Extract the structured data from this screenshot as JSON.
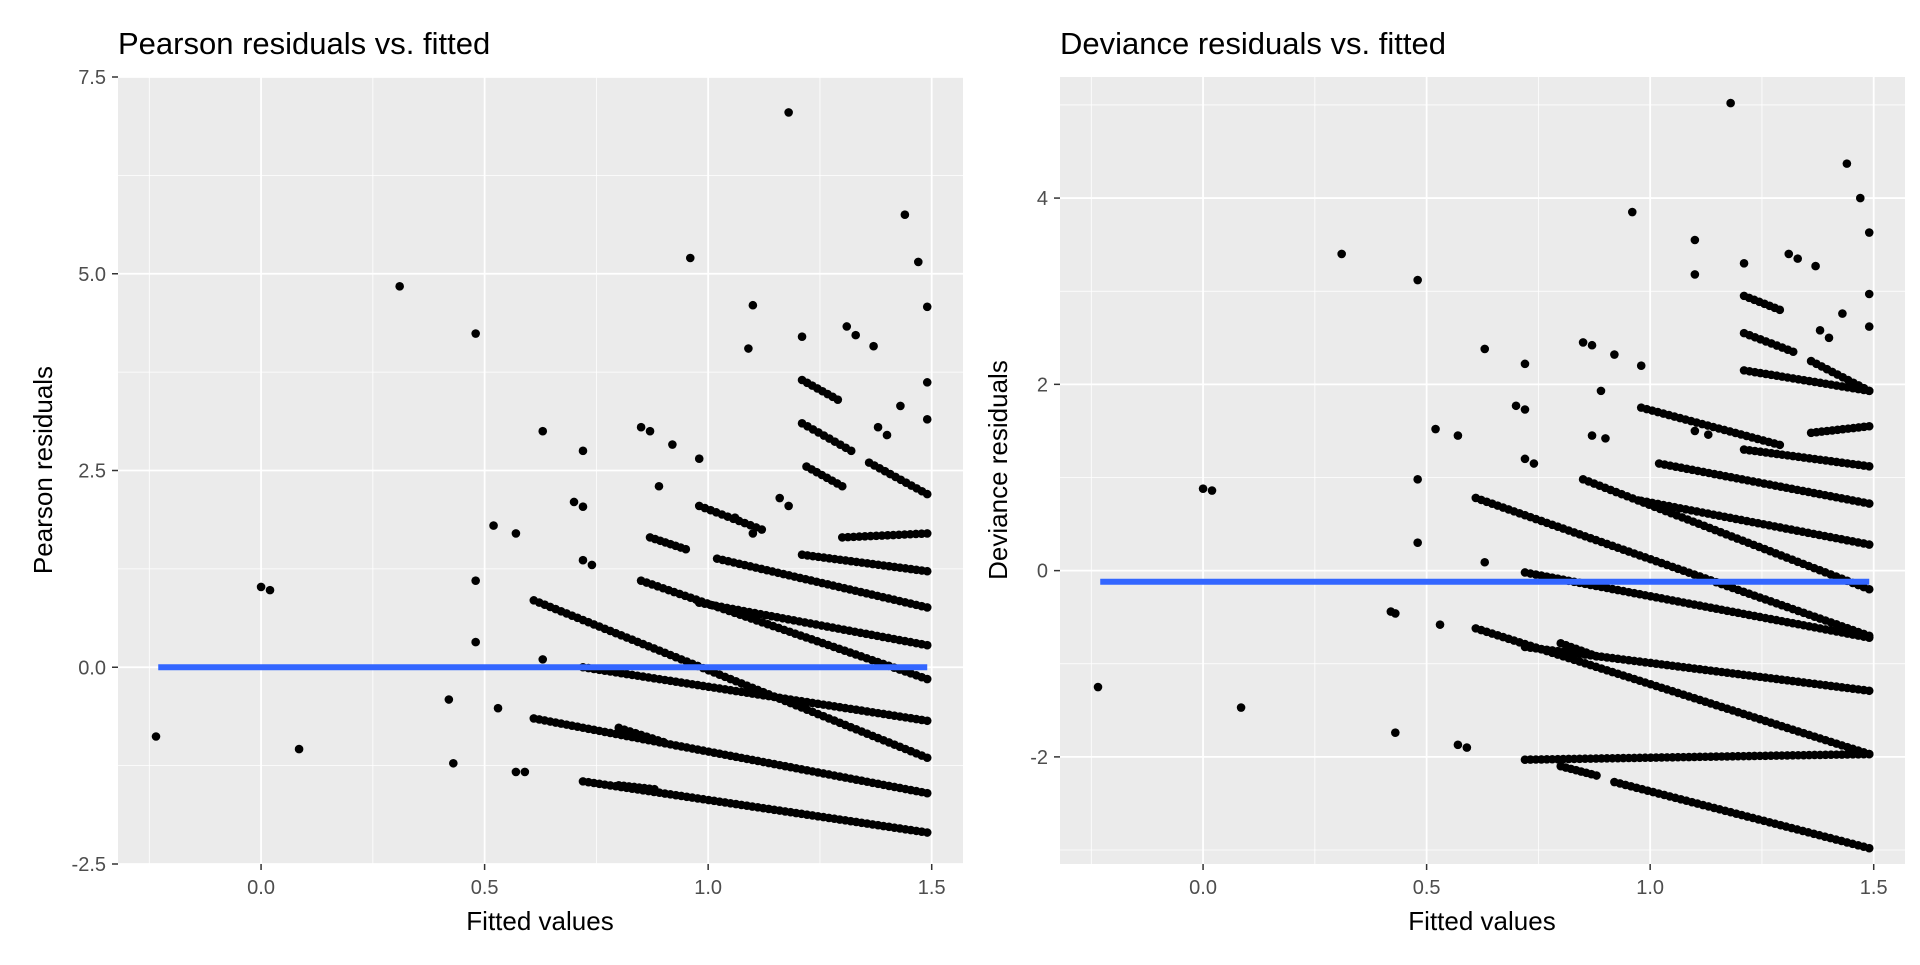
{
  "chart_data": [
    {
      "type": "scatter",
      "title": "Pearson residuals vs. fitted",
      "xlabel": "Fitted values",
      "ylabel": "Pearson residuals",
      "xlim": [
        -0.32,
        1.57
      ],
      "ylim": [
        -2.5,
        7.5
      ],
      "x_ticks": [
        0.0,
        0.5,
        1.0,
        1.5
      ],
      "x_tick_labels": [
        "0.0",
        "0.5",
        "1.0",
        "1.5"
      ],
      "y_ticks": [
        -2.5,
        0.0,
        2.5,
        5.0,
        7.5
      ],
      "y_tick_labels": [
        "-2.5",
        "0.0",
        "2.5",
        "5.0",
        "7.5"
      ],
      "grid": true,
      "smooth_line": {
        "x": [
          -0.23,
          1.49
        ],
        "y": [
          0.0,
          0.0
        ],
        "color": "#3366ff"
      },
      "points": [
        [
          -0.235,
          -0.88
        ],
        [
          0.0,
          1.02
        ],
        [
          0.02,
          0.98
        ],
        [
          0.085,
          -1.04
        ],
        [
          0.31,
          4.84
        ],
        [
          0.42,
          -0.41
        ],
        [
          0.43,
          -1.22
        ],
        [
          0.48,
          4.24
        ],
        [
          0.48,
          1.1
        ],
        [
          0.48,
          0.32
        ],
        [
          0.52,
          1.8
        ],
        [
          0.53,
          -0.52
        ],
        [
          0.57,
          1.7
        ],
        [
          0.57,
          -1.33
        ],
        [
          0.59,
          -1.33
        ],
        [
          0.63,
          3.0
        ],
        [
          0.63,
          0.1
        ],
        [
          0.72,
          2.75
        ],
        [
          0.7,
          2.1
        ],
        [
          0.72,
          2.04
        ],
        [
          0.72,
          1.36
        ],
        [
          0.74,
          1.3
        ],
        [
          0.96,
          5.2
        ],
        [
          1.1,
          4.6
        ],
        [
          1.09,
          4.05
        ],
        [
          1.18,
          7.05
        ],
        [
          1.21,
          4.2
        ],
        [
          1.44,
          5.75
        ],
        [
          1.47,
          5.15
        ],
        [
          1.49,
          4.58
        ],
        [
          1.49,
          3.62
        ],
        [
          1.49,
          3.15
        ],
        [
          1.31,
          4.33
        ],
        [
          1.33,
          4.22
        ],
        [
          1.37,
          4.08
        ],
        [
          0.85,
          3.05
        ],
        [
          0.87,
          3.0
        ],
        [
          0.92,
          2.83
        ],
        [
          0.98,
          2.65
        ],
        [
          0.89,
          2.3
        ],
        [
          1.43,
          3.32
        ],
        [
          1.4,
          2.95
        ],
        [
          1.38,
          3.05
        ],
        [
          1.16,
          2.15
        ],
        [
          1.18,
          2.05
        ],
        [
          1.06,
          1.9
        ],
        [
          1.1,
          1.7
        ]
      ],
      "bands": [
        {
          "x_start": 0.72,
          "x_end": 1.49,
          "y_start": -1.45,
          "y_end": -2.1
        },
        {
          "x_start": 0.61,
          "x_end": 1.49,
          "y_start": -0.65,
          "y_end": -1.6
        },
        {
          "x_start": 0.61,
          "x_end": 1.49,
          "y_start": 0.85,
          "y_end": -1.15
        },
        {
          "x_start": 0.72,
          "x_end": 1.49,
          "y_start": 0.0,
          "y_end": -0.68
        },
        {
          "x_start": 0.85,
          "x_end": 1.49,
          "y_start": 1.1,
          "y_end": -0.15
        },
        {
          "x_start": 0.98,
          "x_end": 1.49,
          "y_start": 0.82,
          "y_end": 0.28
        },
        {
          "x_start": 1.02,
          "x_end": 1.49,
          "y_start": 1.38,
          "y_end": 0.76
        },
        {
          "x_start": 1.21,
          "x_end": 1.49,
          "y_start": 1.43,
          "y_end": 1.22
        },
        {
          "x_start": 1.3,
          "x_end": 1.49,
          "y_start": 1.65,
          "y_end": 1.7
        },
        {
          "x_start": 1.36,
          "x_end": 1.49,
          "y_start": 2.6,
          "y_end": 2.2
        },
        {
          "x_start": 1.21,
          "x_end": 1.29,
          "y_start": 3.65,
          "y_end": 3.4
        },
        {
          "x_start": 1.21,
          "x_end": 1.32,
          "y_start": 3.1,
          "y_end": 2.75
        },
        {
          "x_start": 1.22,
          "x_end": 1.3,
          "y_start": 2.55,
          "y_end": 2.3
        },
        {
          "x_start": 0.98,
          "x_end": 1.12,
          "y_start": 2.05,
          "y_end": 1.75
        },
        {
          "x_start": 0.87,
          "x_end": 0.95,
          "y_start": 1.65,
          "y_end": 1.5
        },
        {
          "x_start": 0.8,
          "x_end": 0.9,
          "y_start": -0.77,
          "y_end": -0.95
        },
        {
          "x_start": 0.8,
          "x_end": 0.88,
          "y_start": -1.5,
          "y_end": -1.55
        }
      ]
    },
    {
      "type": "scatter",
      "title": "Deviance residuals vs. fitted",
      "xlabel": "Fitted values",
      "ylabel": "Deviance residuals",
      "xlim": [
        -0.32,
        1.57
      ],
      "ylim": [
        -3.15,
        5.3
      ],
      "x_ticks": [
        0.0,
        0.5,
        1.0,
        1.5
      ],
      "x_tick_labels": [
        "0.0",
        "0.5",
        "1.0",
        "1.5"
      ],
      "y_ticks": [
        -2,
        0,
        2,
        4
      ],
      "y_tick_labels": [
        "-2",
        "0",
        "2",
        "4"
      ],
      "grid": true,
      "smooth_line": {
        "x": [
          -0.23,
          1.49
        ],
        "y": [
          -0.12,
          -0.12
        ],
        "color": "#3366ff"
      },
      "points": [
        [
          -0.235,
          -1.25
        ],
        [
          0.0,
          0.88
        ],
        [
          0.02,
          0.86
        ],
        [
          0.085,
          -1.47
        ],
        [
          0.31,
          3.4
        ],
        [
          0.42,
          -0.44
        ],
        [
          0.43,
          -0.46
        ],
        [
          0.43,
          -1.74
        ],
        [
          0.48,
          3.12
        ],
        [
          0.48,
          0.98
        ],
        [
          0.48,
          0.3
        ],
        [
          0.52,
          1.52
        ],
        [
          0.53,
          -0.58
        ],
        [
          0.57,
          1.45
        ],
        [
          0.57,
          -1.87
        ],
        [
          0.59,
          -1.9
        ],
        [
          0.63,
          2.38
        ],
        [
          0.63,
          0.09
        ],
        [
          0.72,
          2.22
        ],
        [
          0.7,
          1.77
        ],
        [
          0.72,
          1.73
        ],
        [
          0.72,
          1.2
        ],
        [
          0.74,
          1.15
        ],
        [
          0.96,
          3.85
        ],
        [
          1.1,
          3.55
        ],
        [
          1.1,
          3.18
        ],
        [
          1.18,
          5.02
        ],
        [
          1.21,
          3.3
        ],
        [
          1.44,
          4.37
        ],
        [
          1.47,
          4.0
        ],
        [
          1.49,
          3.63
        ],
        [
          1.49,
          2.97
        ],
        [
          1.49,
          2.62
        ],
        [
          1.31,
          3.4
        ],
        [
          1.33,
          3.35
        ],
        [
          1.37,
          3.27
        ],
        [
          0.85,
          2.45
        ],
        [
          0.87,
          2.42
        ],
        [
          0.92,
          2.32
        ],
        [
          0.98,
          2.2
        ],
        [
          0.89,
          1.93
        ],
        [
          1.43,
          2.76
        ],
        [
          1.4,
          2.5
        ],
        [
          1.38,
          2.58
        ],
        [
          0.87,
          1.45
        ],
        [
          0.9,
          1.42
        ],
        [
          1.1,
          1.5
        ],
        [
          1.13,
          1.46
        ]
      ],
      "bands": [
        {
          "x_start": 0.72,
          "x_end": 1.49,
          "y_start": -2.03,
          "y_end": -1.97
        },
        {
          "x_start": 0.92,
          "x_end": 1.49,
          "y_start": -2.27,
          "y_end": -2.98
        },
        {
          "x_start": 0.61,
          "x_end": 1.49,
          "y_start": -0.62,
          "y_end": -1.97
        },
        {
          "x_start": 0.72,
          "x_end": 1.49,
          "y_start": -0.82,
          "y_end": -1.29
        },
        {
          "x_start": 0.72,
          "x_end": 1.49,
          "y_start": -0.02,
          "y_end": -0.72
        },
        {
          "x_start": 0.85,
          "x_end": 1.49,
          "y_start": 0.98,
          "y_end": -0.2
        },
        {
          "x_start": 0.61,
          "x_end": 1.49,
          "y_start": 0.78,
          "y_end": -0.7
        },
        {
          "x_start": 0.98,
          "x_end": 1.49,
          "y_start": 0.75,
          "y_end": 0.28
        },
        {
          "x_start": 1.02,
          "x_end": 1.49,
          "y_start": 1.15,
          "y_end": 0.72
        },
        {
          "x_start": 0.98,
          "x_end": 1.29,
          "y_start": 1.75,
          "y_end": 1.35
        },
        {
          "x_start": 1.21,
          "x_end": 1.49,
          "y_start": 1.3,
          "y_end": 1.12
        },
        {
          "x_start": 1.36,
          "x_end": 1.49,
          "y_start": 1.48,
          "y_end": 1.55
        },
        {
          "x_start": 1.21,
          "x_end": 1.49,
          "y_start": 2.15,
          "y_end": 1.93
        },
        {
          "x_start": 1.21,
          "x_end": 1.32,
          "y_start": 2.55,
          "y_end": 2.35
        },
        {
          "x_start": 1.21,
          "x_end": 1.29,
          "y_start": 2.95,
          "y_end": 2.8
        },
        {
          "x_start": 1.36,
          "x_end": 1.49,
          "y_start": 2.25,
          "y_end": 1.93
        },
        {
          "x_start": 0.8,
          "x_end": 0.88,
          "y_start": -0.78,
          "y_end": -0.92
        },
        {
          "x_start": 0.8,
          "x_end": 0.88,
          "y_start": -2.1,
          "y_end": -2.2
        }
      ]
    }
  ]
}
